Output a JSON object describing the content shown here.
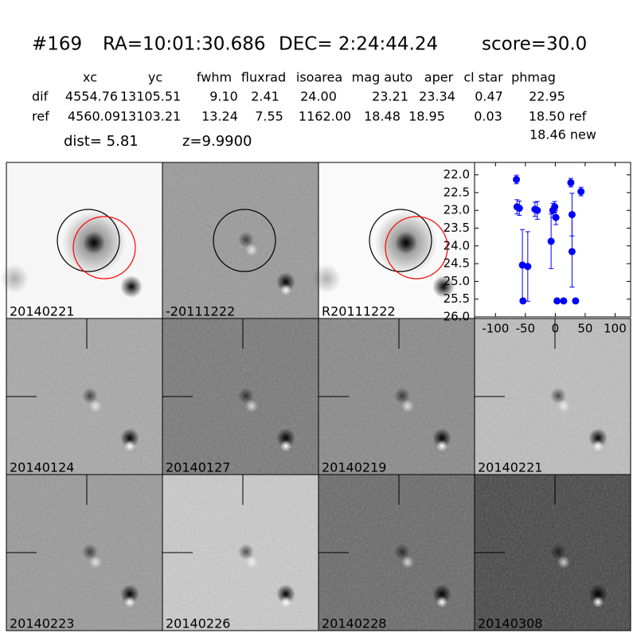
{
  "header": {
    "id": "#169",
    "ra": "RA=10:01:30.686",
    "dec": "DEC= 2:24:44.24",
    "score": "score=30.0"
  },
  "table": {
    "columns": [
      "xc",
      "yc",
      "fwhm",
      "fluxrad",
      "isoarea",
      "mag auto",
      "aper",
      "cl star",
      "phmag"
    ],
    "rows": [
      [
        "dif",
        "4554.76",
        "13105.51",
        "9.10",
        "2.41",
        "24.00",
        "23.21",
        "23.34",
        "0.47",
        "22.95"
      ],
      [
        "ref",
        "4560.09",
        "13103.21",
        "13.24",
        "7.55",
        "1162.00",
        "18.48",
        "18.95",
        "0.03",
        "18.50 ref"
      ]
    ],
    "extra": "18.46 new"
  },
  "dist": "dist=  5.81",
  "z": "z=9.9900",
  "panels": [
    {
      "label": "20140221"
    },
    {
      "label": "-20111222"
    },
    {
      "label": "R20111222"
    },
    {
      "label": "20140124"
    },
    {
      "label": "20140127"
    },
    {
      "label": "20140219"
    },
    {
      "label": "20140221",
      "color": "#ff0000"
    },
    {
      "label": "20140223"
    },
    {
      "label": "20140226"
    },
    {
      "label": "20140228"
    },
    {
      "label": "20140308"
    }
  ],
  "chart_data": {
    "type": "scatter",
    "color": "#0000ff",
    "x": [
      -65,
      -64,
      -60,
      -55,
      -54,
      -46,
      -34,
      -30,
      -7,
      -4,
      -1,
      1,
      3,
      14,
      26,
      28,
      28,
      34,
      43
    ],
    "values": [
      22.13,
      22.9,
      22.94,
      24.54,
      25.55,
      24.58,
      22.97,
      23.0,
      23.87,
      23.0,
      22.9,
      23.2,
      25.55,
      25.55,
      22.22,
      23.12,
      24.16,
      25.55,
      22.47
    ],
    "errors": [
      0.12,
      0.2,
      0.2,
      1.0,
      0.05,
      0.98,
      0.2,
      0.25,
      0.77,
      0.2,
      0.15,
      0.2,
      0.05,
      0.05,
      0.12,
      0.6,
      1.0,
      0.05,
      0.12
    ],
    "xlim": [
      -135,
      126
    ],
    "ylim": [
      26.0,
      21.65
    ],
    "xticks": [
      -100,
      -50,
      0,
      50,
      100
    ],
    "yticks": [
      {
        "value": 22.0,
        "label": "22.0"
      },
      {
        "value": 22.5,
        "label": "22.5"
      },
      {
        "value": 23.0,
        "label": "23.0"
      },
      {
        "value": 23.5,
        "label": "23.5"
      },
      {
        "value": 24.0,
        "label": "24.0"
      },
      {
        "value": 24.5,
        "label": "24.5"
      },
      {
        "value": 25.0,
        "label": "25.0"
      },
      {
        "value": 25.5,
        "label": "25.5"
      },
      {
        "value": 26.0,
        "label": "26.0"
      }
    ]
  }
}
